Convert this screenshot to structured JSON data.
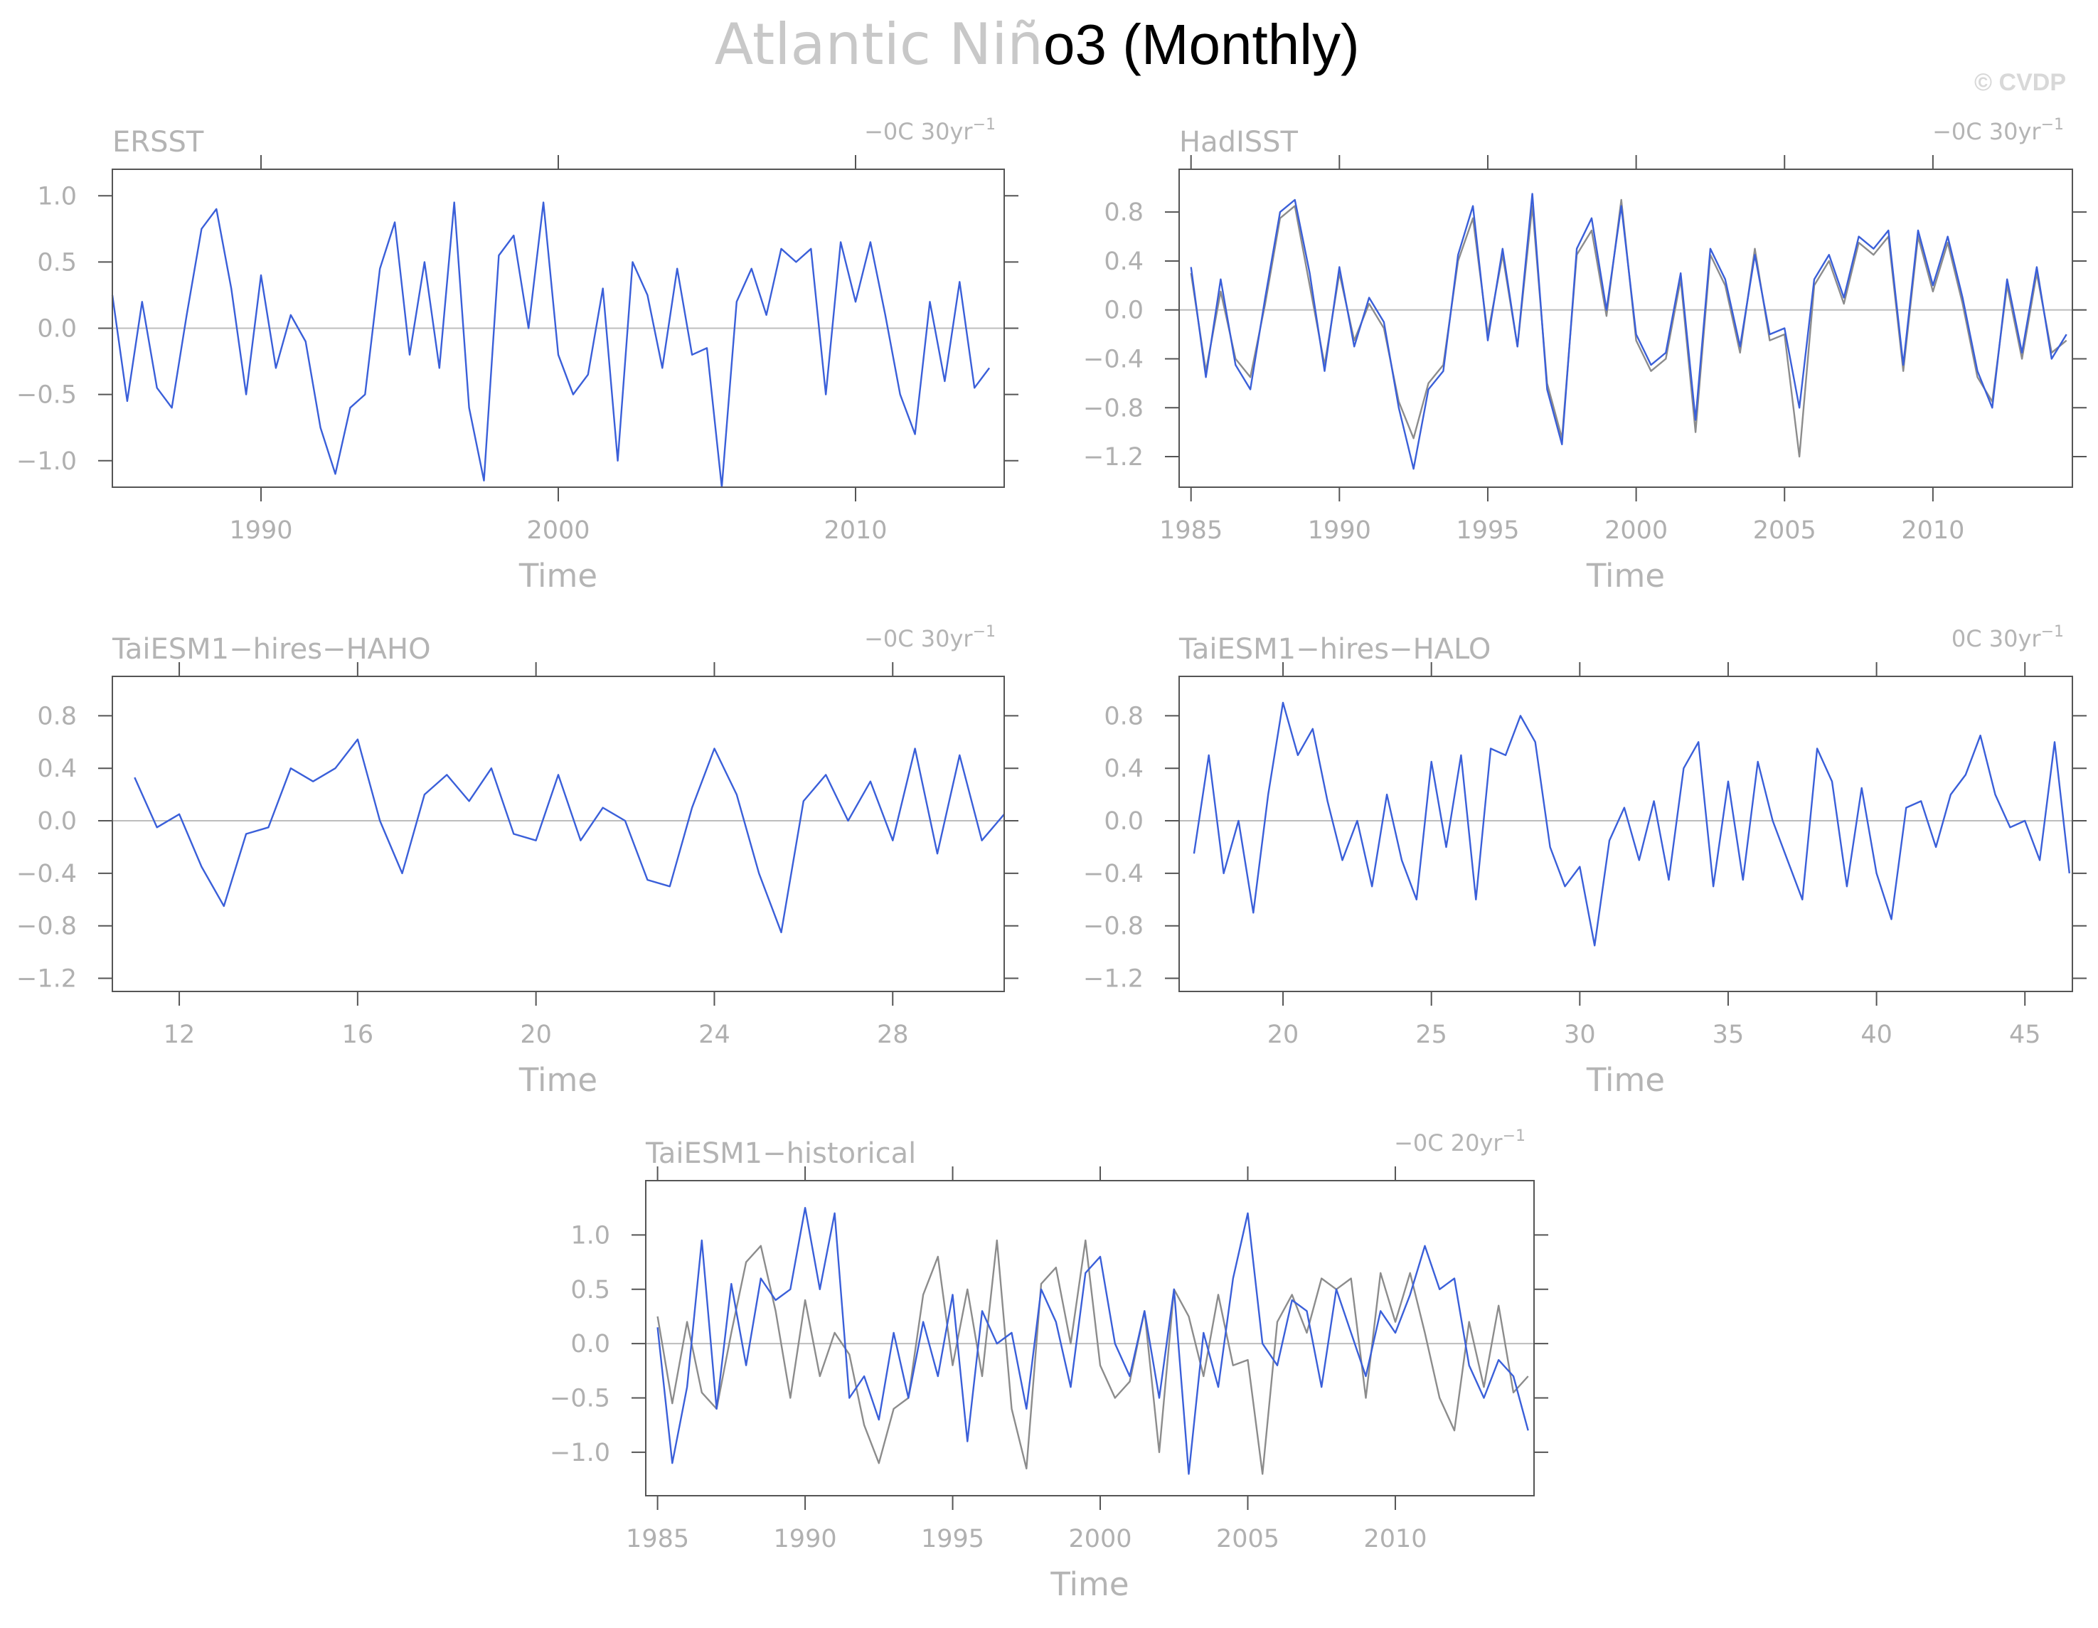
{
  "title": {
    "light_part": "Atlantic Niñ",
    "dark_part": "o3 (Monthly)"
  },
  "copyright": "© CVDP",
  "colors": {
    "primary_series": "#3a5fd9",
    "observed_series": "#8c8c8c",
    "frame": "#555555",
    "zero_line": "#bdbdbd",
    "text": "#b4b4b4"
  },
  "chart_data": [
    {
      "type": "line",
      "title": "ERSST",
      "stat_text": "−0C 30yr",
      "stat_sup": "−1",
      "xlabel": "Time",
      "ylabel": "",
      "xlim": [
        1985,
        2015
      ],
      "ylim": [
        -1.2,
        1.2
      ],
      "x_ticks": [
        1990,
        2000,
        2010
      ],
      "y_ticks": [
        1.0,
        0.5,
        0.0,
        -0.5,
        -1.0
      ],
      "y_tick_labels": [
        "1.0",
        "0.5",
        "0.0",
        "−0.5",
        "−1.0"
      ],
      "grid": false,
      "zero_line": true,
      "series": [
        {
          "color": "#3a5fd9",
          "x": [
            1985.0,
            1985.5,
            1986.0,
            1986.5,
            1987.0,
            1987.5,
            1988.0,
            1988.5,
            1989.0,
            1989.5,
            1990.0,
            1990.5,
            1991.0,
            1991.5,
            1992.0,
            1992.5,
            1993.0,
            1993.5,
            1994.0,
            1994.5,
            1995.0,
            1995.5,
            1996.0,
            1996.5,
            1997.0,
            1997.5,
            1998.0,
            1998.5,
            1999.0,
            1999.5,
            2000.0,
            2000.5,
            2001.0,
            2001.5,
            2002.0,
            2002.5,
            2003.0,
            2003.5,
            2004.0,
            2004.5,
            2005.0,
            2005.5,
            2006.0,
            2006.5,
            2007.0,
            2007.5,
            2008.0,
            2008.5,
            2009.0,
            2009.5,
            2010.0,
            2010.5,
            2011.0,
            2011.5,
            2012.0,
            2012.5,
            2013.0,
            2013.5,
            2014.0,
            2014.5
          ],
          "y": [
            0.25,
            -0.55,
            0.2,
            -0.45,
            -0.6,
            0.1,
            0.75,
            0.9,
            0.3,
            -0.5,
            0.4,
            -0.3,
            0.1,
            -0.1,
            -0.75,
            -1.1,
            -0.6,
            -0.5,
            0.45,
            0.8,
            -0.2,
            0.5,
            -0.3,
            0.95,
            -0.6,
            -1.15,
            0.55,
            0.7,
            0.0,
            0.95,
            -0.2,
            -0.5,
            -0.35,
            0.3,
            -1.0,
            0.5,
            0.25,
            -0.3,
            0.45,
            -0.2,
            -0.15,
            -1.2,
            0.2,
            0.45,
            0.1,
            0.6,
            0.5,
            0.6,
            -0.5,
            0.65,
            0.2,
            0.65,
            0.1,
            -0.5,
            -0.8,
            0.2,
            -0.4,
            0.35,
            -0.45,
            -0.3
          ]
        }
      ]
    },
    {
      "type": "line",
      "title": "HadISST",
      "stat_text": "−0C 30yr",
      "stat_sup": "−1",
      "xlabel": "Time",
      "ylabel": "",
      "xlim": [
        1984.6,
        2014.7
      ],
      "ylim": [
        -1.45,
        1.15
      ],
      "x_ticks": [
        1985,
        1990,
        1995,
        2000,
        2005,
        2010
      ],
      "y_ticks": [
        0.8,
        0.4,
        0.0,
        -0.4,
        -0.8,
        -1.2
      ],
      "y_tick_labels": [
        "0.8",
        "0.4",
        "0.0",
        "−0.4",
        "−0.8",
        "−1.2"
      ],
      "grid": false,
      "zero_line": true,
      "series": [
        {
          "color": "#8c8c8c",
          "x": [
            1985.0,
            1985.5,
            1986.0,
            1986.5,
            1987.0,
            1987.5,
            1988.0,
            1988.5,
            1989.0,
            1989.5,
            1990.0,
            1990.5,
            1991.0,
            1991.5,
            1992.0,
            1992.5,
            1993.0,
            1993.5,
            1994.0,
            1994.5,
            1995.0,
            1995.5,
            1996.0,
            1996.5,
            1997.0,
            1997.5,
            1998.0,
            1998.5,
            1999.0,
            1999.5,
            2000.0,
            2000.5,
            2001.0,
            2001.5,
            2002.0,
            2002.5,
            2003.0,
            2003.5,
            2004.0,
            2004.5,
            2005.0,
            2005.5,
            2006.0,
            2006.5,
            2007.0,
            2007.5,
            2008.0,
            2008.5,
            2009.0,
            2009.5,
            2010.0,
            2010.5,
            2011.0,
            2011.5,
            2012.0,
            2012.5,
            2013.0,
            2013.5,
            2014.0,
            2014.5
          ],
          "y": [
            0.3,
            -0.5,
            0.15,
            -0.4,
            -0.55,
            0.05,
            0.75,
            0.85,
            0.2,
            -0.45,
            0.3,
            -0.25,
            0.05,
            -0.15,
            -0.75,
            -1.05,
            -0.6,
            -0.45,
            0.4,
            0.75,
            -0.2,
            0.45,
            -0.3,
            0.85,
            -0.6,
            -1.05,
            0.45,
            0.65,
            -0.05,
            0.9,
            -0.25,
            -0.5,
            -0.4,
            0.25,
            -1.0,
            0.45,
            0.2,
            -0.35,
            0.5,
            -0.25,
            -0.2,
            -1.2,
            0.2,
            0.4,
            0.05,
            0.55,
            0.45,
            0.6,
            -0.5,
            0.6,
            0.15,
            0.55,
            0.05,
            -0.55,
            -0.75,
            0.2,
            -0.4,
            0.3,
            -0.35,
            -0.25
          ]
        },
        {
          "color": "#3a5fd9",
          "x": [
            1985.0,
            1985.5,
            1986.0,
            1986.5,
            1987.0,
            1987.5,
            1988.0,
            1988.5,
            1989.0,
            1989.5,
            1990.0,
            1990.5,
            1991.0,
            1991.5,
            1992.0,
            1992.5,
            1993.0,
            1993.5,
            1994.0,
            1994.5,
            1995.0,
            1995.5,
            1996.0,
            1996.5,
            1997.0,
            1997.5,
            1998.0,
            1998.5,
            1999.0,
            1999.5,
            2000.0,
            2000.5,
            2001.0,
            2001.5,
            2002.0,
            2002.5,
            2003.0,
            2003.5,
            2004.0,
            2004.5,
            2005.0,
            2005.5,
            2006.0,
            2006.5,
            2007.0,
            2007.5,
            2008.0,
            2008.5,
            2009.0,
            2009.5,
            2010.0,
            2010.5,
            2011.0,
            2011.5,
            2012.0,
            2012.5,
            2013.0,
            2013.5,
            2014.0,
            2014.5
          ],
          "y": [
            0.35,
            -0.55,
            0.25,
            -0.45,
            -0.65,
            0.1,
            0.8,
            0.9,
            0.3,
            -0.5,
            0.35,
            -0.3,
            0.1,
            -0.1,
            -0.8,
            -1.3,
            -0.65,
            -0.5,
            0.45,
            0.85,
            -0.25,
            0.5,
            -0.3,
            0.95,
            -0.65,
            -1.1,
            0.5,
            0.75,
            0.0,
            0.85,
            -0.2,
            -0.45,
            -0.35,
            0.3,
            -0.9,
            0.5,
            0.25,
            -0.3,
            0.45,
            -0.2,
            -0.15,
            -0.8,
            0.25,
            0.45,
            0.1,
            0.6,
            0.5,
            0.65,
            -0.45,
            0.65,
            0.2,
            0.6,
            0.1,
            -0.5,
            -0.8,
            0.25,
            -0.35,
            0.35,
            -0.4,
            -0.2
          ]
        }
      ]
    },
    {
      "type": "line",
      "title": "TaiESM1−hires−HAHO",
      "stat_text": "−0C 30yr",
      "stat_sup": "−1",
      "xlabel": "Time",
      "ylabel": "",
      "xlim": [
        10.5,
        30.5
      ],
      "ylim": [
        -1.3,
        1.1
      ],
      "x_ticks": [
        12,
        16,
        20,
        24,
        28
      ],
      "y_ticks": [
        0.8,
        0.4,
        0.0,
        -0.4,
        -0.8,
        -1.2
      ],
      "y_tick_labels": [
        "0.8",
        "0.4",
        "0.0",
        "−0.4",
        "−0.8",
        "−1.2"
      ],
      "grid": false,
      "zero_line": true,
      "series": [
        {
          "color": "#3a5fd9",
          "x": [
            11.0,
            11.5,
            12.0,
            12.5,
            13.0,
            13.5,
            14.0,
            14.5,
            15.0,
            15.5,
            16.0,
            16.5,
            17.0,
            17.5,
            18.0,
            18.5,
            19.0,
            19.5,
            20.0,
            20.5,
            21.0,
            21.5,
            22.0,
            22.5,
            23.0,
            23.5,
            24.0,
            24.5,
            25.0,
            25.5,
            26.0,
            26.5,
            27.0,
            27.5,
            28.0,
            28.5,
            29.0,
            29.5,
            30.0,
            30.5
          ],
          "y": [
            0.33,
            -0.05,
            0.05,
            -0.35,
            -0.65,
            -0.1,
            -0.05,
            0.4,
            0.3,
            0.4,
            0.62,
            0.0,
            -0.4,
            0.2,
            0.35,
            0.15,
            0.4,
            -0.1,
            -0.15,
            0.35,
            -0.15,
            0.1,
            0.0,
            -0.45,
            -0.5,
            0.1,
            0.55,
            0.2,
            -0.4,
            -0.85,
            0.15,
            0.35,
            0.0,
            0.3,
            -0.15,
            0.55,
            -0.25,
            0.5,
            -0.15,
            0.05
          ]
        }
      ]
    },
    {
      "type": "line",
      "title": "TaiESM1−hires−HALO",
      "stat_text": "0C 30yr",
      "stat_sup": "−1",
      "xlabel": "Time",
      "ylabel": "",
      "xlim": [
        16.5,
        46.6
      ],
      "ylim": [
        -1.3,
        1.1
      ],
      "x_ticks": [
        20,
        25,
        30,
        35,
        40,
        45
      ],
      "y_ticks": [
        0.8,
        0.4,
        0.0,
        -0.4,
        -0.8,
        -1.2
      ],
      "y_tick_labels": [
        "0.8",
        "0.4",
        "0.0",
        "−0.4",
        "−0.8",
        "−1.2"
      ],
      "grid": false,
      "zero_line": true,
      "series": [
        {
          "color": "#3a5fd9",
          "x": [
            17.0,
            17.5,
            18.0,
            18.5,
            19.0,
            19.5,
            20.0,
            20.5,
            21.0,
            21.5,
            22.0,
            22.5,
            23.0,
            23.5,
            24.0,
            24.5,
            25.0,
            25.5,
            26.0,
            26.5,
            27.0,
            27.5,
            28.0,
            28.5,
            29.0,
            29.5,
            30.0,
            30.5,
            31.0,
            31.5,
            32.0,
            32.5,
            33.0,
            33.5,
            34.0,
            34.5,
            35.0,
            35.5,
            36.0,
            36.5,
            37.0,
            37.5,
            38.0,
            38.5,
            39.0,
            39.5,
            40.0,
            40.5,
            41.0,
            41.5,
            42.0,
            42.5,
            43.0,
            43.5,
            44.0,
            44.5,
            45.0,
            45.5,
            46.0,
            46.5
          ],
          "y": [
            -0.25,
            0.5,
            -0.4,
            0.0,
            -0.7,
            0.2,
            0.9,
            0.5,
            0.7,
            0.15,
            -0.3,
            0.0,
            -0.5,
            0.2,
            -0.3,
            -0.6,
            0.45,
            -0.2,
            0.5,
            -0.6,
            0.55,
            0.5,
            0.8,
            0.6,
            -0.2,
            -0.5,
            -0.35,
            -0.95,
            -0.15,
            0.1,
            -0.3,
            0.15,
            -0.45,
            0.4,
            0.6,
            -0.5,
            0.3,
            -0.45,
            0.45,
            0.0,
            -0.3,
            -0.6,
            0.55,
            0.3,
            -0.5,
            0.25,
            -0.4,
            -0.75,
            0.1,
            0.15,
            -0.2,
            0.2,
            0.35,
            0.65,
            0.2,
            -0.05,
            0.0,
            -0.3,
            0.6,
            -0.4
          ]
        }
      ]
    },
    {
      "type": "line",
      "title": "TaiESM1−historical",
      "stat_text": "−0C 20yr",
      "stat_sup": "−1",
      "xlabel": "Time",
      "ylabel": "",
      "xlim": [
        1984.6,
        2014.7
      ],
      "ylim": [
        -1.4,
        1.5
      ],
      "x_ticks": [
        1985,
        1990,
        1995,
        2000,
        2005,
        2010
      ],
      "y_ticks": [
        1.0,
        0.5,
        0.0,
        -0.5,
        -1.0
      ],
      "y_tick_labels": [
        "1.0",
        "0.5",
        "0.0",
        "−0.5",
        "−1.0"
      ],
      "grid": false,
      "zero_line": true,
      "series": [
        {
          "color": "#8c8c8c",
          "x": [
            1985.0,
            1985.5,
            1986.0,
            1986.5,
            1987.0,
            1987.5,
            1988.0,
            1988.5,
            1989.0,
            1989.5,
            1990.0,
            1990.5,
            1991.0,
            1991.5,
            1992.0,
            1992.5,
            1993.0,
            1993.5,
            1994.0,
            1994.5,
            1995.0,
            1995.5,
            1996.0,
            1996.5,
            1997.0,
            1997.5,
            1998.0,
            1998.5,
            1999.0,
            1999.5,
            2000.0,
            2000.5,
            2001.0,
            2001.5,
            2002.0,
            2002.5,
            2003.0,
            2003.5,
            2004.0,
            2004.5,
            2005.0,
            2005.5,
            2006.0,
            2006.5,
            2007.0,
            2007.5,
            2008.0,
            2008.5,
            2009.0,
            2009.5,
            2010.0,
            2010.5,
            2011.0,
            2011.5,
            2012.0,
            2012.5,
            2013.0,
            2013.5,
            2014.0,
            2014.5
          ],
          "y": [
            0.25,
            -0.55,
            0.2,
            -0.45,
            -0.6,
            0.1,
            0.75,
            0.9,
            0.3,
            -0.5,
            0.4,
            -0.3,
            0.1,
            -0.1,
            -0.75,
            -1.1,
            -0.6,
            -0.5,
            0.45,
            0.8,
            -0.2,
            0.5,
            -0.3,
            0.95,
            -0.6,
            -1.15,
            0.55,
            0.7,
            0.0,
            0.95,
            -0.2,
            -0.5,
            -0.35,
            0.3,
            -1.0,
            0.5,
            0.25,
            -0.3,
            0.45,
            -0.2,
            -0.15,
            -1.2,
            0.2,
            0.45,
            0.1,
            0.6,
            0.5,
            0.6,
            -0.5,
            0.65,
            0.2,
            0.65,
            0.1,
            -0.5,
            -0.8,
            0.2,
            -0.4,
            0.35,
            -0.45,
            -0.3
          ]
        },
        {
          "color": "#3a5fd9",
          "x": [
            1985.0,
            1985.5,
            1986.0,
            1986.5,
            1987.0,
            1987.5,
            1988.0,
            1988.5,
            1989.0,
            1989.5,
            1990.0,
            1990.5,
            1991.0,
            1991.5,
            1992.0,
            1992.5,
            1993.0,
            1993.5,
            1994.0,
            1994.5,
            1995.0,
            1995.5,
            1996.0,
            1996.5,
            1997.0,
            1997.5,
            1998.0,
            1998.5,
            1999.0,
            1999.5,
            2000.0,
            2000.5,
            2001.0,
            2001.5,
            2002.0,
            2002.5,
            2003.0,
            2003.5,
            2004.0,
            2004.5,
            2005.0,
            2005.5,
            2006.0,
            2006.5,
            2007.0,
            2007.5,
            2008.0,
            2008.5,
            2009.0,
            2009.5,
            2010.0,
            2010.5,
            2011.0,
            2011.5,
            2012.0,
            2012.5,
            2013.0,
            2013.5,
            2014.0,
            2014.5
          ],
          "y": [
            0.15,
            -1.1,
            -0.4,
            0.95,
            -0.6,
            0.55,
            -0.2,
            0.6,
            0.4,
            0.5,
            1.25,
            0.5,
            1.2,
            -0.5,
            -0.3,
            -0.7,
            0.1,
            -0.5,
            0.2,
            -0.3,
            0.45,
            -0.9,
            0.3,
            0.0,
            0.1,
            -0.6,
            0.5,
            0.2,
            -0.4,
            0.65,
            0.8,
            0.0,
            -0.3,
            0.3,
            -0.5,
            0.5,
            -1.2,
            0.1,
            -0.4,
            0.6,
            1.2,
            0.0,
            -0.2,
            0.4,
            0.3,
            -0.4,
            0.5,
            0.1,
            -0.3,
            0.3,
            0.1,
            0.45,
            0.9,
            0.5,
            0.6,
            -0.2,
            -0.5,
            -0.15,
            -0.3,
            -0.8
          ]
        }
      ]
    }
  ]
}
